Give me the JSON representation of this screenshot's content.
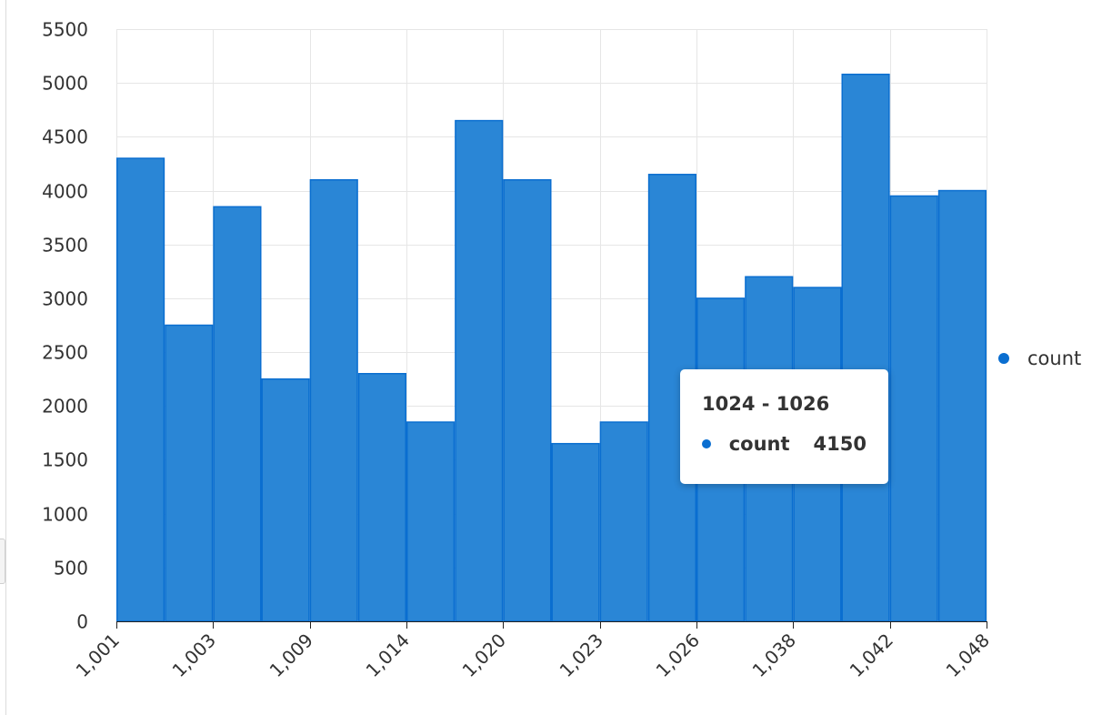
{
  "chart_data": {
    "type": "bar",
    "categories": [
      "1,001",
      "",
      "1,003",
      "",
      "1,009",
      "",
      "1,014",
      "",
      "1,020",
      "",
      "1,023",
      "",
      "1,026",
      "",
      "1,038",
      "",
      "1,042",
      ""
    ],
    "x_tick_labels": [
      "1,001",
      "1,003",
      "1,009",
      "1,014",
      "1,020",
      "1,023",
      "1,026",
      "1,038",
      "1,042",
      "1,048"
    ],
    "y_tick_labels": [
      "0",
      "500",
      "1000",
      "1500",
      "2000",
      "2500",
      "3000",
      "3500",
      "4000",
      "4500",
      "5000",
      "5500"
    ],
    "ylim": [
      0,
      5500
    ],
    "series": [
      {
        "name": "count",
        "values": [
          4300,
          2750,
          3850,
          2250,
          4100,
          2300,
          1850,
          4650,
          4100,
          1650,
          1850,
          4150,
          3000,
          3200,
          3100,
          5080,
          3950,
          4000
        ]
      }
    ],
    "legend": {
      "label": "count",
      "position": "right"
    },
    "grid": true,
    "colors": {
      "bar_fill": "#2a86d6",
      "bar_stroke": "#0a6ed0",
      "legend_dot": "#0a6ed0"
    }
  },
  "tooltip": {
    "title": "1024 - 1026",
    "series": "count",
    "value": "4150"
  }
}
